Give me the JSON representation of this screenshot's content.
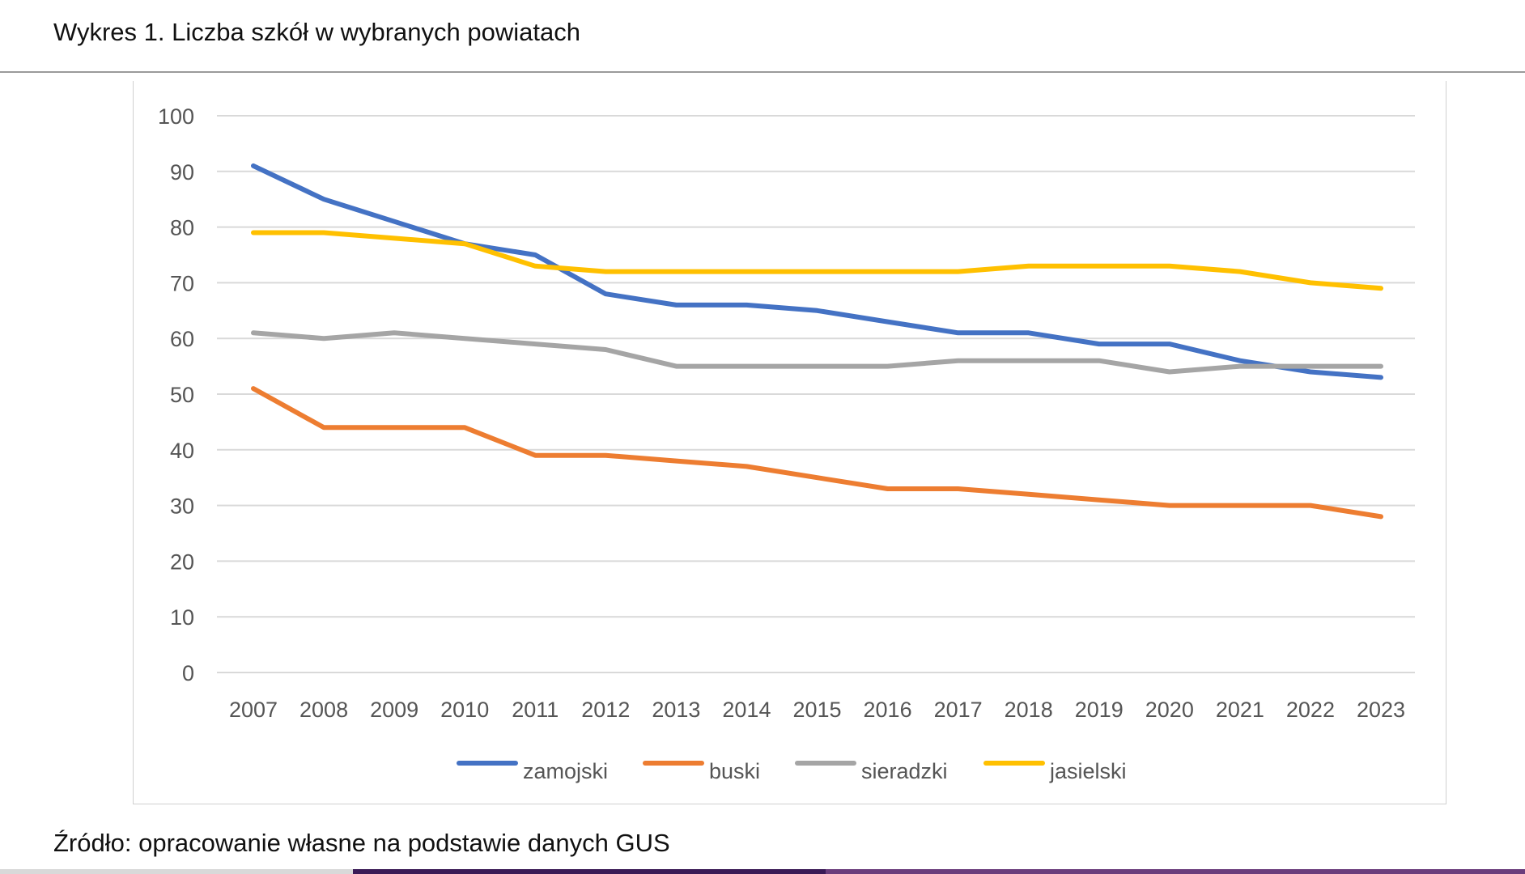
{
  "header": {
    "title": "Wykres 1. Liczba szkół w wybranych powiatach"
  },
  "footer": {
    "source": "Źródło: opracowanie własne na podstawie danych GUS"
  },
  "chart_data": {
    "type": "line",
    "title": "",
    "xlabel": "",
    "ylabel": "",
    "x": [
      "2007",
      "2008",
      "2009",
      "2010",
      "2011",
      "2012",
      "2013",
      "2014",
      "2015",
      "2016",
      "2017",
      "2018",
      "2019",
      "2020",
      "2021",
      "2022",
      "2023"
    ],
    "ylim": [
      0,
      100
    ],
    "yticks": [
      0,
      10,
      20,
      30,
      40,
      50,
      60,
      70,
      80,
      90,
      100
    ],
    "grid": true,
    "legend": "bottom",
    "series": [
      {
        "name": "zamojski",
        "color": "#4472C4",
        "values": [
          91,
          85,
          81,
          77,
          75,
          68,
          66,
          66,
          65,
          63,
          61,
          61,
          59,
          59,
          56,
          54,
          53
        ]
      },
      {
        "name": "buski",
        "color": "#ED7D31",
        "values": [
          51,
          44,
          44,
          44,
          39,
          39,
          38,
          37,
          35,
          33,
          33,
          32,
          31,
          30,
          30,
          30,
          28
        ]
      },
      {
        "name": "sieradzki",
        "color": "#A5A5A5",
        "values": [
          61,
          60,
          61,
          60,
          59,
          58,
          55,
          55,
          55,
          55,
          56,
          56,
          56,
          54,
          55,
          55,
          55
        ]
      },
      {
        "name": "jasielski",
        "color": "#FFC000",
        "values": [
          79,
          79,
          78,
          77,
          73,
          72,
          72,
          72,
          72,
          72,
          72,
          73,
          73,
          73,
          72,
          70,
          69
        ]
      }
    ]
  }
}
